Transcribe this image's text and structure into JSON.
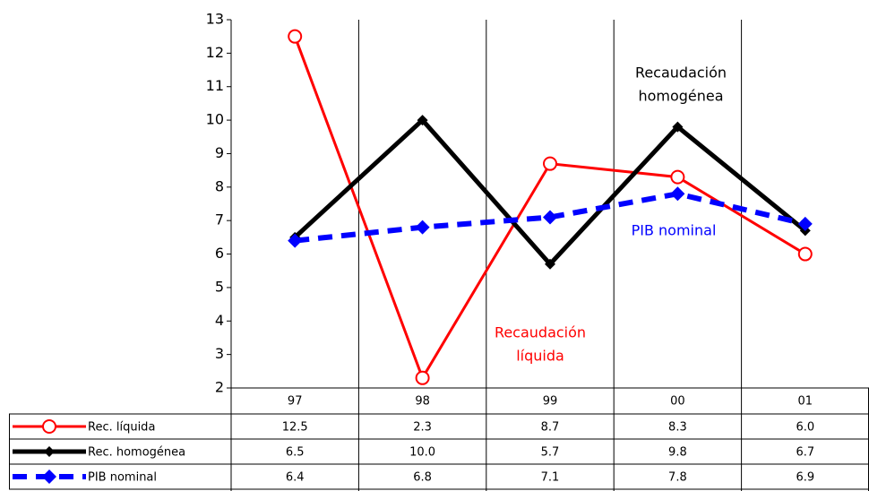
{
  "chart_data": {
    "type": "line",
    "categories": [
      "97",
      "98",
      "99",
      "00",
      "01"
    ],
    "series": [
      {
        "name": "Rec. líquida",
        "color": "#ff0000",
        "marker": "circle",
        "values": [
          12.5,
          2.3,
          8.7,
          8.3,
          6
        ],
        "value_labels": [
          "12.5",
          "2.3",
          "8.7",
          "8.3",
          "6.0"
        ]
      },
      {
        "name": "Rec. homogénea",
        "color": "#000000",
        "marker": "diamond",
        "values": [
          6.5,
          10,
          5.7,
          9.8,
          6.7
        ],
        "value_labels": [
          "6.5",
          "10.0",
          "5.7",
          "9.8",
          "6.7"
        ]
      },
      {
        "name": "PIB nominal",
        "color": "#0000ff",
        "marker": "diamond",
        "dashed": true,
        "values": [
          6.4,
          6.8,
          7.1,
          7.8,
          6.9
        ],
        "value_labels": [
          "6.4",
          "6.8",
          "7.1",
          "7.8",
          "6.9"
        ]
      }
    ],
    "ylim": [
      2,
      13
    ],
    "yticks": [
      2,
      3,
      4,
      5,
      6,
      7,
      8,
      9,
      10,
      11,
      12,
      13
    ],
    "grid": "x",
    "annotations": [
      {
        "lines": [
          "Recaudación",
          "homogénea"
        ],
        "color": "#000000"
      },
      {
        "lines": [
          "PIB nominal"
        ],
        "color": "#0000ff"
      },
      {
        "lines": [
          "Recaudación",
          "líquida"
        ],
        "color": "#ff0000"
      }
    ]
  }
}
